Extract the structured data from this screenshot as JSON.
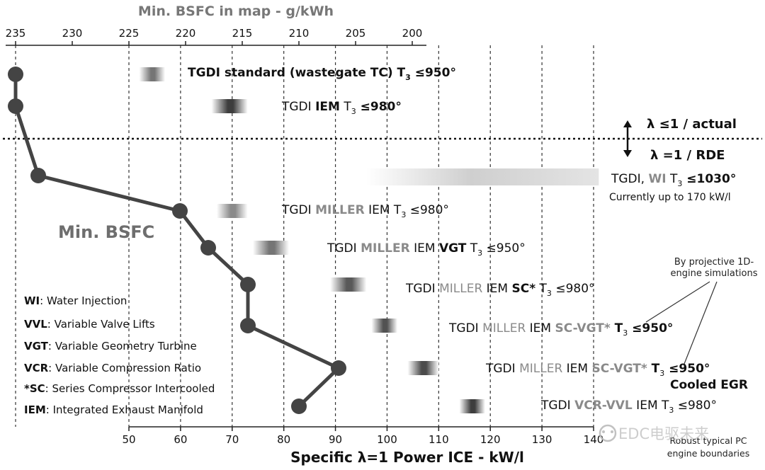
{
  "chart_data": {
    "type": "line",
    "title_top_axis": "Min. BSFC in map -  g/kWh",
    "xlabel": "Specific λ=1 Power ICE - kW/l",
    "x_ticks": [
      "50",
      "60",
      "70",
      "80",
      "90",
      "100",
      "110",
      "120",
      "130",
      "140"
    ],
    "x_range": [
      50,
      140
    ],
    "top_ticks": [
      "235",
      "230",
      "225",
      "220",
      "215",
      "210",
      "205",
      "200"
    ],
    "top_range": [
      235,
      200
    ],
    "curve_label": "Min. BSFC",
    "series": [
      {
        "name": "Min. BSFC",
        "points": [
          {
            "bsfc": 235.0,
            "row": 0
          },
          {
            "bsfc": 235.0,
            "row": 1
          },
          {
            "bsfc": 233.0,
            "row": 2
          },
          {
            "bsfc": 220.5,
            "row": 3
          },
          {
            "bsfc": 218.0,
            "row": 4
          },
          {
            "bsfc": 214.5,
            "row": 5
          },
          {
            "bsfc": 214.5,
            "row": 6
          },
          {
            "bsfc": 206.5,
            "row": 7
          },
          {
            "bsfc": 210.0,
            "row": 8
          }
        ]
      }
    ],
    "bars": [
      {
        "from": 52,
        "to": 57,
        "shade": 0.55,
        "row": 0
      },
      {
        "from": 66,
        "to": 73,
        "shade": 0.15,
        "row": 1
      },
      {
        "from": 67,
        "to": 73,
        "shade": 0.7,
        "row": 3
      },
      {
        "from": 74,
        "to": 81,
        "shade": 0.55,
        "row": 4
      },
      {
        "from": 89,
        "to": 96,
        "shade": 0.35,
        "row": 5
      },
      {
        "from": 97,
        "to": 102,
        "shade": 0.3,
        "row": 6
      },
      {
        "from": 104,
        "to": 110,
        "shade": 0.25,
        "row": 7
      },
      {
        "from": 114,
        "to": 119,
        "shade": 0.15,
        "row": 8
      }
    ],
    "wi_bar": {
      "from": 96,
      "to": 141
    }
  },
  "labels": {
    "std": {
      "a": "TGDI standard (wastegate TC) T",
      "b": "3",
      "c": " ≤950°"
    },
    "iem": {
      "a": "TGDI ",
      "b": "IEM",
      "c": " T",
      "d": "3",
      "e": " ≤980°"
    },
    "wi": {
      "a": "TGDI, ",
      "b": "WI",
      "c": " T",
      "d": "3",
      "e": " ≤1030°",
      "note": "Currently up to 170 kW/l"
    },
    "miller": {
      "a": "TGDI ",
      "b": "MILLER",
      "c": " IEM T",
      "d": "3",
      "e": " ≤980°"
    },
    "miller_vgt": {
      "a": "TGDI ",
      "b": "MILLER",
      "c": " IEM ",
      "d": "VGT",
      "e": " T",
      "f": "3",
      "g": " ≤950°"
    },
    "miller_sc": {
      "a": "TGDI ",
      "b": "MILLER",
      "c": " IEM ",
      "d": "SC*",
      "e": " T",
      "f": "3",
      "g": " ≤980°"
    },
    "sc_vgt": {
      "a": "TGDI ",
      "b": "MILLER",
      "c": " IEM ",
      "d": "SC-VGT*",
      "e": " T",
      "f": "3",
      "g": " ≤950°"
    },
    "sc_vgt_egr": {
      "a": "TGDI ",
      "b": "MILLER",
      "c": " IEM ",
      "d": "SC-VGT*",
      "e": " T",
      "f": "3",
      "g": " ≤950°",
      "line2": "Cooled EGR"
    },
    "vcr": {
      "a": "TGDI ",
      "b": "VCR-VVL",
      "c": " IEM T",
      "d": "3",
      "e": " ≤980°"
    }
  },
  "lambda": {
    "upper": "λ ≤1 / actual",
    "lower": "λ =1 / RDE"
  },
  "projective": {
    "line1": "By projective 1D-",
    "line2": "engine simulations"
  },
  "robust": {
    "line1": "Robust typical PC",
    "line2": "engine boundaries"
  },
  "watermark": "EDC电驱未来",
  "legend": [
    {
      "key": "WI",
      "desc": ": Water Injection"
    },
    {
      "key": "VVL",
      "desc": ": Variable Valve Lifts"
    },
    {
      "key": "VGT",
      "desc": ": Variable Geometry Turbine"
    },
    {
      "key": "VCR",
      "desc": ": Variable Compression Ratio"
    },
    {
      "key": "*SC",
      "desc": ": Series Compressor Intercooled"
    },
    {
      "key": "IEM",
      "desc": ": Integrated Exhaust Manifold"
    }
  ],
  "colors": {
    "curve": "#444444",
    "accent_gray": "#8a8a8a",
    "text": "#111111"
  }
}
